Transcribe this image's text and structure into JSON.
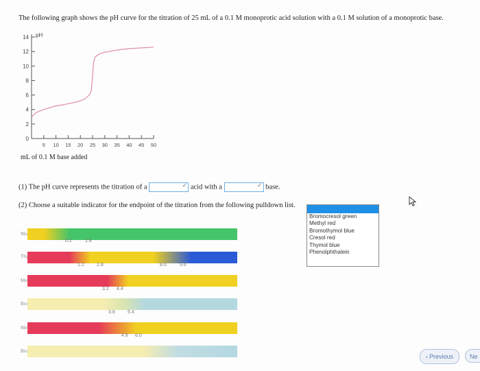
{
  "question": {
    "intro": "The following graph shows the pH curve for the titration of 25 mL of a 0.1 M monoprotic acid solution with a 0.1 M solution of a monoprotic base."
  },
  "chart_data": {
    "type": "line",
    "ylabel": "pH",
    "xlabel": "mL of 0.1 M base added",
    "y_ticks": [
      "14",
      "12",
      "10",
      "8",
      "6",
      "4",
      "2",
      "0"
    ],
    "x_ticks": [
      "5",
      "10",
      "15",
      "20",
      "25",
      "30",
      "35",
      "40",
      "45",
      "50"
    ],
    "xlim": [
      0,
      50
    ],
    "ylim": [
      0,
      14
    ],
    "series": [
      {
        "color": "#e08ab0",
        "x": [
          0,
          2,
          5,
          8,
          10,
          12,
          15,
          18,
          20,
          22,
          23,
          24,
          24.5,
          25,
          25.5,
          26,
          27,
          28,
          30,
          35,
          40,
          45,
          50
        ],
        "y": [
          3.0,
          3.6,
          4.0,
          4.3,
          4.5,
          4.6,
          4.8,
          5.0,
          5.2,
          5.5,
          5.8,
          6.2,
          6.7,
          8.7,
          10.7,
          11.2,
          11.5,
          11.7,
          11.9,
          12.2,
          12.4,
          12.5,
          12.6
        ]
      }
    ]
  },
  "parts": {
    "p1_prefix": "(1) The pH curve represents the titration of a",
    "p1_middle": "acid with a",
    "p1_suffix": "base.",
    "p2": "(2) Choose a suitable indicator for the endpoint of the titration from the following pulldown list."
  },
  "indicator_list": [
    "Bromocresol green",
    "Methyl red",
    "Bromothymol blue",
    "Cresol red",
    "Thymol blue",
    "Phenolphthalein"
  ],
  "indicators": [
    {
      "label": "Malachite green",
      "colors": [
        "#f0d020",
        "#46c46a"
      ],
      "ranges": [
        "0.2",
        "1.8"
      ]
    },
    {
      "label": "Thymol blue",
      "colors": [
        "#e63a5a",
        "#f0d020",
        "#2a5ad6"
      ],
      "ranges": [
        "1.2",
        "2.8",
        "8.0",
        "9.6"
      ]
    },
    {
      "label": "Methyl orange",
      "colors": [
        "#e63a5a",
        "#f0d020"
      ],
      "ranges": [
        "3.2",
        "4.4"
      ]
    },
    {
      "label": "Bromocresol green",
      "colors": [
        "#f0d020",
        "#2a5ad6"
      ],
      "ranges": [
        "3.8",
        "5.4"
      ]
    },
    {
      "label": "Methyl red",
      "colors": [
        "#e63a5a",
        "#f0d020"
      ],
      "ranges": [
        "4.8",
        "6.0"
      ]
    },
    {
      "label": "Bromothymol blue",
      "colors": [
        "#f0d020",
        "#2a5ad6"
      ],
      "ranges": []
    }
  ],
  "nav": {
    "previous": "Previous",
    "next": "Ne"
  }
}
